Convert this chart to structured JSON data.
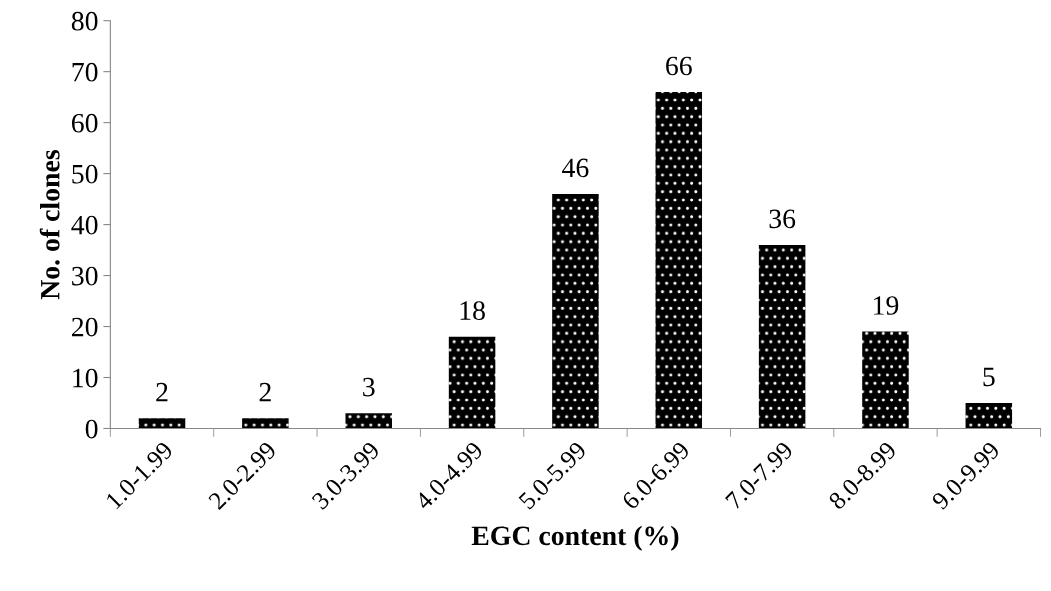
{
  "chart_data": {
    "type": "bar",
    "xlabel": "EGC content (%)",
    "ylabel": "No. of clones",
    "categories": [
      "1.0-1.99",
      "2.0-2.99",
      "3.0-3.99",
      "4.0-4.99",
      "5.0-5.99",
      "6.0-6.99",
      "7.0-7.99",
      "8.0-8.99",
      "9.0-9.99"
    ],
    "values": [
      2,
      2,
      3,
      18,
      46,
      66,
      36,
      19,
      5
    ],
    "color": "#000000",
    "ylim": [
      0,
      80
    ],
    "yticks": [
      0,
      10,
      20,
      30,
      40,
      50,
      60,
      70,
      80
    ],
    "grid": false,
    "data_labels": true
  }
}
